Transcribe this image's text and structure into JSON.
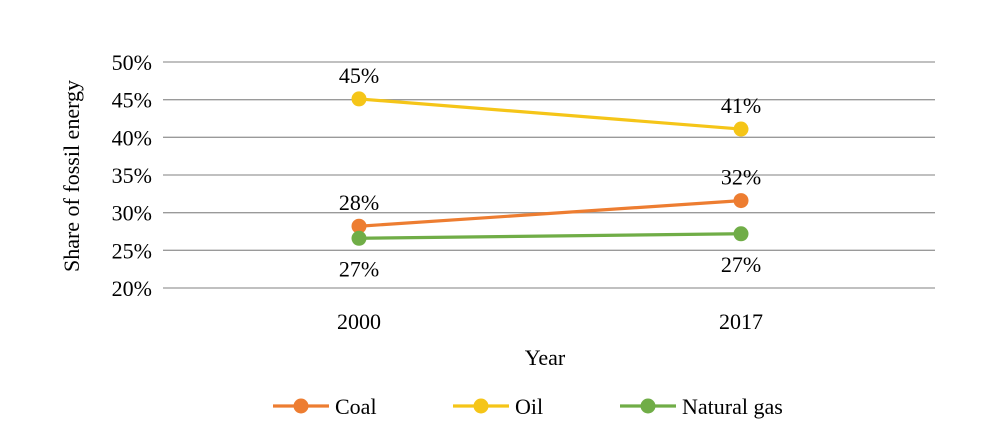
{
  "chart_data": {
    "type": "line",
    "title": "",
    "xlabel": "Year",
    "ylabel": "Share of fossil energy",
    "categories": [
      "2000",
      "2017"
    ],
    "ylim": [
      0.2,
      0.5
    ],
    "yticks": [
      {
        "value": 0.2,
        "label": "20%"
      },
      {
        "value": 0.25,
        "label": "25%"
      },
      {
        "value": 0.3,
        "label": "30%"
      },
      {
        "value": 0.35,
        "label": "35%"
      },
      {
        "value": 0.4,
        "label": "40%"
      },
      {
        "value": 0.45,
        "label": "45%"
      },
      {
        "value": 0.5,
        "label": "50%"
      }
    ],
    "grid": true,
    "legend_position": "bottom",
    "series": [
      {
        "key": "coal",
        "name": "Coal",
        "color": "#ED7D31",
        "values": [
          0.282,
          0.316
        ],
        "labels": [
          "28%",
          "32%"
        ],
        "label_side": "above"
      },
      {
        "key": "oil",
        "name": "Oil",
        "color": "#F5C518",
        "values": [
          0.451,
          0.411
        ],
        "labels": [
          "45%",
          "41%"
        ],
        "label_side": "above"
      },
      {
        "key": "natural-gas",
        "name": "Natural gas",
        "color": "#70AD47",
        "values": [
          0.266,
          0.272
        ],
        "labels": [
          "27%",
          "27%"
        ],
        "label_side": "below"
      }
    ]
  }
}
